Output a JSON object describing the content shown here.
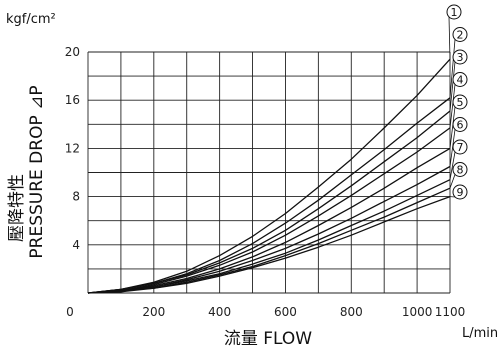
{
  "chart_data": {
    "type": "line",
    "title": "",
    "ylabel_jp": "壓降特性",
    "ylabel": "PRESSURE DROP ⊿P",
    "xlabel": "流量 FLOW",
    "yunit": "kgf/cm²",
    "xunit": "L/min",
    "xlim": [
      0,
      1100
    ],
    "ylim": [
      0,
      20
    ],
    "xticks": [
      0,
      200,
      400,
      600,
      800,
      1000,
      1100
    ],
    "yticks": [
      4,
      8,
      12,
      16,
      20
    ],
    "grid": true,
    "x": [
      0,
      100,
      200,
      300,
      400,
      500,
      600,
      700,
      800,
      900,
      1000,
      1100
    ],
    "series": [
      {
        "name": "1",
        "values": [
          0,
          0.3,
          0.9,
          1.8,
          3.1,
          4.7,
          6.6,
          8.8,
          11.1,
          13.7,
          16.4,
          19.4
        ]
      },
      {
        "name": "2",
        "values": [
          0,
          0.3,
          0.8,
          1.6,
          2.7,
          4.1,
          5.8,
          7.7,
          9.8,
          11.9,
          14.1,
          16.2
        ]
      },
      {
        "name": "3",
        "values": [
          0,
          0.3,
          0.8,
          1.5,
          2.5,
          3.7,
          5.2,
          7.0,
          8.9,
          10.9,
          12.9,
          15.1
        ]
      },
      {
        "name": "4",
        "values": [
          0,
          0.2,
          0.7,
          1.4,
          2.3,
          3.4,
          4.8,
          6.4,
          8.1,
          9.9,
          11.7,
          13.7
        ]
      },
      {
        "name": "5",
        "values": [
          0,
          0.2,
          0.6,
          1.2,
          2.0,
          3.0,
          4.2,
          5.6,
          7.1,
          8.7,
          10.4,
          12.0
        ]
      },
      {
        "name": "6",
        "values": [
          0,
          0.2,
          0.5,
          1.1,
          1.8,
          2.7,
          3.7,
          4.9,
          6.2,
          7.6,
          9.0,
          10.5
        ]
      },
      {
        "name": "7",
        "values": [
          0,
          0.2,
          0.5,
          1.0,
          1.6,
          2.4,
          3.3,
          4.4,
          5.6,
          6.8,
          8.1,
          9.4
        ]
      },
      {
        "name": "8",
        "values": [
          0,
          0.2,
          0.4,
          0.9,
          1.5,
          2.2,
          3.1,
          4.1,
          5.2,
          6.3,
          7.5,
          8.7
        ]
      },
      {
        "name": "9",
        "values": [
          0,
          0.1,
          0.4,
          0.8,
          1.4,
          2.1,
          2.9,
          3.8,
          4.8,
          5.9,
          7.0,
          8.0
        ]
      }
    ]
  }
}
